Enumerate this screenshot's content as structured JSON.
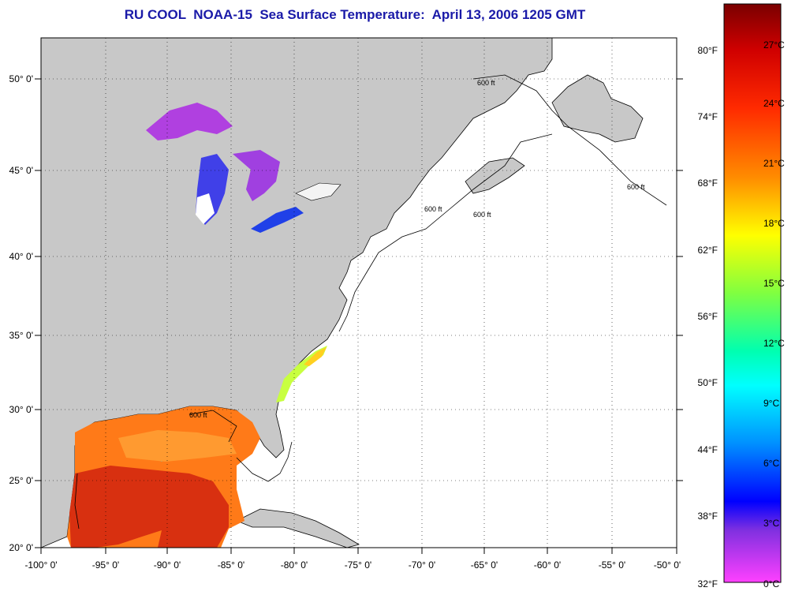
{
  "title": "RU COOL  NOAA-15  Sea Surface Temperature:  April 13, 2006 1205 GMT",
  "map": {
    "lon_range": [
      -100,
      -50
    ],
    "lat_range": [
      20,
      52.5
    ],
    "lon_labels": [
      "-100° 0'",
      "-95° 0'",
      "-90° 0'",
      "-85° 0'",
      "-80° 0'",
      "-75° 0'",
      "-70° 0'",
      "-65° 0'",
      "-60° 0'",
      "-55° 0'",
      "-50° 0'"
    ],
    "lat_labels": [
      "20° 0'",
      "25° 0'",
      "30° 0'",
      "35° 0'",
      "40° 0'",
      "45° 0'",
      "50° 0'"
    ],
    "contour_label": "600 ft",
    "contour_label_short": "600 ft",
    "land_color": "#c8c8c8",
    "ocean_color": "#ffffff",
    "grid": "dotted"
  },
  "colorbar": {
    "fahrenheit_labels": [
      "80°F",
      "74°F",
      "68°F",
      "62°F",
      "56°F",
      "50°F",
      "44°F",
      "38°F",
      "32°F"
    ],
    "celsius_labels": [
      "27°C",
      "24°C",
      "21°C",
      "18°C",
      "15°C",
      "12°C",
      "9°C",
      "6°C",
      "3°C",
      "0°C"
    ],
    "colors": [
      "#8b0000",
      "#ff0000",
      "#ff8000",
      "#ffff00",
      "#80ff40",
      "#00ffff",
      "#0080ff",
      "#0000ff",
      "#8000ff",
      "#ff40ff"
    ]
  }
}
